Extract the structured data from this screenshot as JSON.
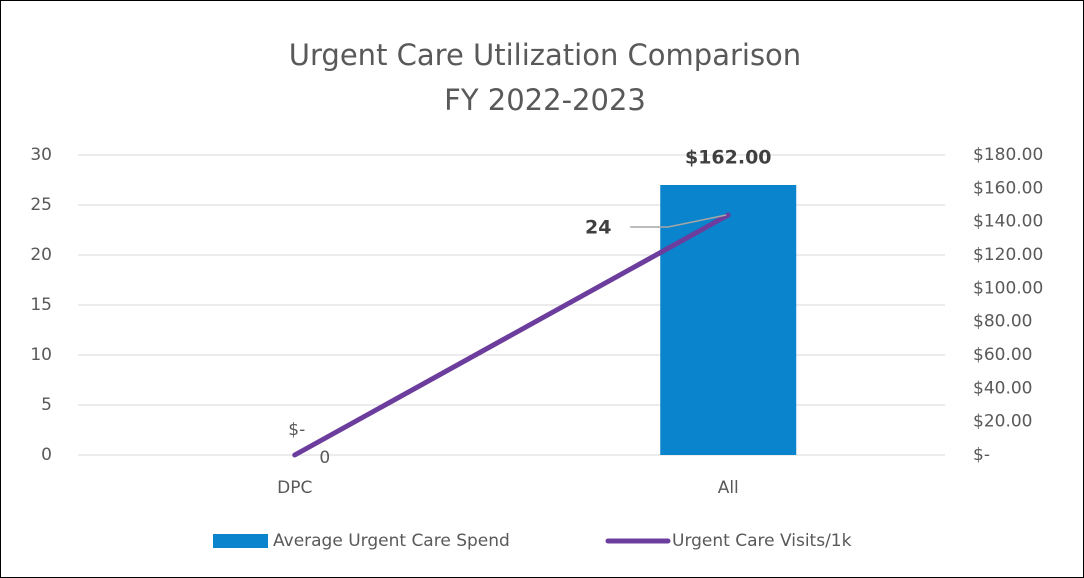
{
  "chart_data": {
    "type": "combo",
    "title": "Urgent Care Utilization Comparison",
    "subtitle": "FY 2022-2023",
    "categories": [
      "DPC",
      "All"
    ],
    "series": [
      {
        "name": "Average Urgent Care Spend",
        "type": "bar",
        "axis": "y2",
        "color": "#0a84cc",
        "values": [
          0,
          162
        ],
        "value_labels": [
          "$-",
          "$162.00"
        ]
      },
      {
        "name": "Urgent Care Visits/1k",
        "type": "line",
        "axis": "y",
        "color": "#6c3d9c",
        "values": [
          0,
          24
        ]
      }
    ],
    "ylim": [
      0,
      30
    ],
    "yticks": [
      0,
      5,
      10,
      15,
      20,
      25,
      30
    ],
    "y2lim": [
      0,
      180
    ],
    "y2ticks": [
      {
        "value": 0,
        "label": "$-"
      },
      {
        "value": 20,
        "label": "$20.00"
      },
      {
        "value": 40,
        "label": "$40.00"
      },
      {
        "value": 60,
        "label": "$60.00"
      },
      {
        "value": 80,
        "label": "$80.00"
      },
      {
        "value": 100,
        "label": "$100.00"
      },
      {
        "value": 120,
        "label": "$120.00"
      },
      {
        "value": 140,
        "label": "$140.00"
      },
      {
        "value": 160,
        "label": "$160.00"
      },
      {
        "value": 180,
        "label": "$180.00"
      }
    ],
    "grid": true,
    "legend": "bottom"
  }
}
